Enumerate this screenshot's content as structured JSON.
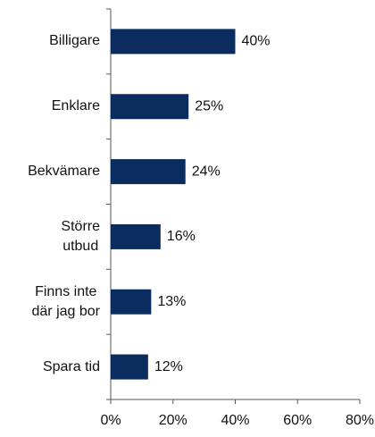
{
  "chart_data": {
    "type": "hbar",
    "categories": [
      "Billigare",
      "Enklare",
      "Bekvämare",
      "Större\nutbud",
      "Finns inte\ndär jag bor",
      "Spara tid"
    ],
    "values": [
      40,
      25,
      24,
      16,
      13,
      12
    ],
    "value_labels": [
      "40%",
      "25%",
      "24%",
      "16%",
      "13%",
      "12%"
    ],
    "color": "#0b2c5e",
    "xlim": [
      0,
      80
    ],
    "xticks": [
      {
        "value": 0,
        "label": "0%"
      },
      {
        "value": 20,
        "label": "20%"
      },
      {
        "value": 40,
        "label": "40%"
      },
      {
        "value": 60,
        "label": "60%"
      },
      {
        "value": 80,
        "label": "80%"
      }
    ]
  }
}
